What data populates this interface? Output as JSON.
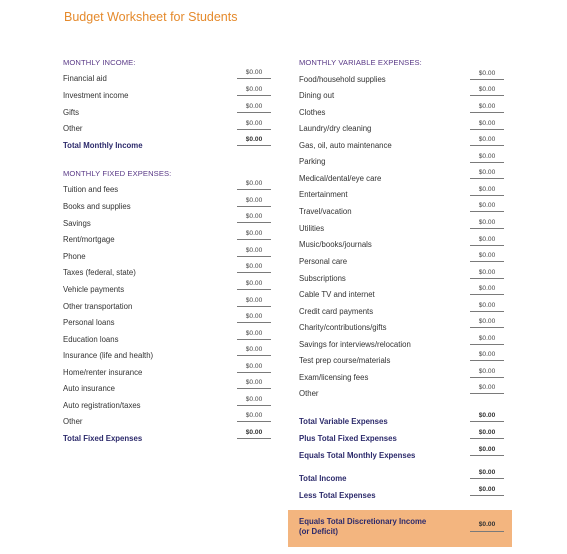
{
  "title": "Budget Worksheet for Students",
  "monthly_income": {
    "heading": "MONTHLY INCOME:",
    "items": [
      {
        "label": "Financial aid",
        "value": "$0.00"
      },
      {
        "label": "Investment income",
        "value": "$0.00"
      },
      {
        "label": "Gifts",
        "value": "$0.00"
      },
      {
        "label": "Other",
        "value": "$0.00"
      }
    ],
    "total": {
      "label": "Total Monthly Income",
      "value": "$0.00"
    }
  },
  "monthly_fixed": {
    "heading": "MONTHLY FIXED EXPENSES:",
    "items": [
      {
        "label": "Tuition and fees",
        "value": "$0.00"
      },
      {
        "label": "Books and supplies",
        "value": "$0.00"
      },
      {
        "label": "Savings",
        "value": "$0.00"
      },
      {
        "label": "Rent/mortgage",
        "value": "$0.00"
      },
      {
        "label": "Phone",
        "value": "$0.00"
      },
      {
        "label": "Taxes (federal, state)",
        "value": "$0.00"
      },
      {
        "label": "Vehicle payments",
        "value": "$0.00"
      },
      {
        "label": "Other transportation",
        "value": "$0.00"
      },
      {
        "label": "Personal loans",
        "value": "$0.00"
      },
      {
        "label": "Education loans",
        "value": "$0.00"
      },
      {
        "label": "Insurance (life and health)",
        "value": "$0.00"
      },
      {
        "label": "Home/renter insurance",
        "value": "$0.00"
      },
      {
        "label": "Auto insurance",
        "value": "$0.00"
      },
      {
        "label": "Auto registration/taxes",
        "value": "$0.00"
      },
      {
        "label": "Other",
        "value": "$0.00"
      }
    ],
    "total": {
      "label": "Total Fixed Expenses",
      "value": "$0.00"
    }
  },
  "monthly_variable": {
    "heading": "MONTHLY VARIABLE EXPENSES:",
    "items": [
      {
        "label": "Food/household supplies",
        "value": "$0.00"
      },
      {
        "label": "Dining out",
        "value": "$0.00"
      },
      {
        "label": "Clothes",
        "value": "$0.00"
      },
      {
        "label": "Laundry/dry cleaning",
        "value": "$0.00"
      },
      {
        "label": "Gas, oil, auto maintenance",
        "value": "$0.00"
      },
      {
        "label": "Parking",
        "value": "$0.00"
      },
      {
        "label": "Medical/dental/eye care",
        "value": "$0.00"
      },
      {
        "label": "Entertainment",
        "value": "$0.00"
      },
      {
        "label": "Travel/vacation",
        "value": "$0.00"
      },
      {
        "label": "Utilities",
        "value": "$0.00"
      },
      {
        "label": "Music/books/journals",
        "value": "$0.00"
      },
      {
        "label": "Personal care",
        "value": "$0.00"
      },
      {
        "label": "Subscriptions",
        "value": "$0.00"
      },
      {
        "label": "Cable TV and internet",
        "value": "$0.00"
      },
      {
        "label": "Credit card payments",
        "value": "$0.00"
      },
      {
        "label": "Charity/contributions/gifts",
        "value": "$0.00"
      },
      {
        "label": "Savings for interviews/relocation",
        "value": "$0.00"
      },
      {
        "label": "Test prep course/materials",
        "value": "$0.00"
      },
      {
        "label": "Exam/licensing fees",
        "value": "$0.00"
      },
      {
        "label": "Other",
        "value": "$0.00"
      }
    ]
  },
  "summary": {
    "total_variable": {
      "label": "Total Variable Expenses",
      "value": "$0.00"
    },
    "plus_fixed": {
      "label": "Plus Total Fixed Expenses",
      "value": "$0.00"
    },
    "equals_monthly": {
      "label": "Equals Total Monthly Expenses",
      "value": "$0.00"
    },
    "total_income": {
      "label": "Total Income",
      "value": "$0.00"
    },
    "less_expenses": {
      "label": "Less Total Expenses",
      "value": "$0.00"
    },
    "discretionary": {
      "label_line1": "Equals Total Discretionary Income",
      "label_line2": "(or Deficit)",
      "value": "$0.00"
    }
  },
  "colors": {
    "title": "#e58a2c",
    "heading": "#5a3a87",
    "bold_label": "#2c2a6b",
    "highlight": "#f3b57f"
  }
}
